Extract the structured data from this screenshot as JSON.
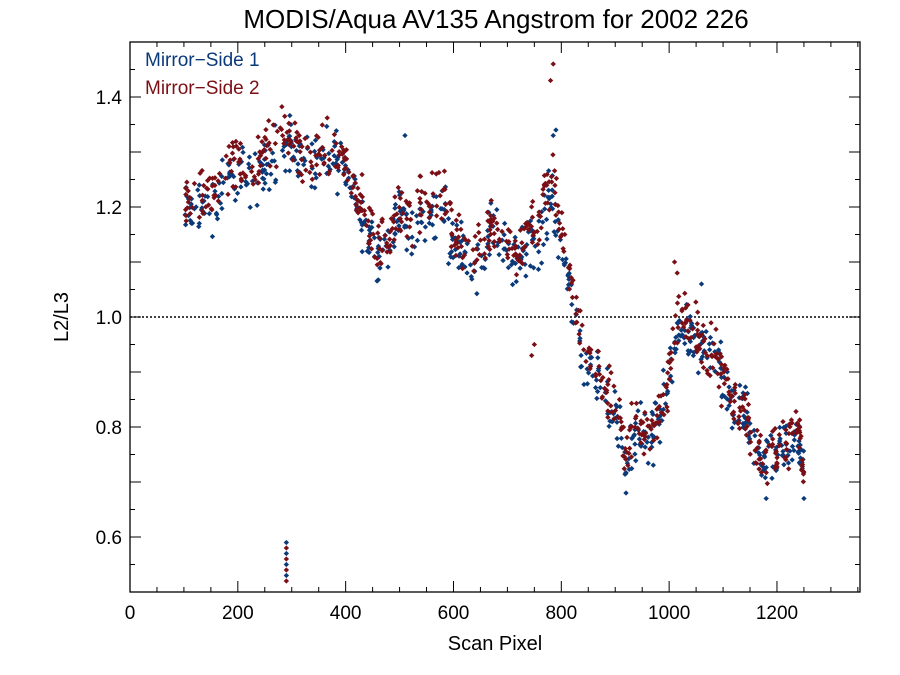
{
  "chart_data": {
    "type": "scatter",
    "title": "MODIS/Aqua AV135 Angstrom for 2002 226",
    "xlabel": "Scan Pixel",
    "ylabel": "L2/L3",
    "xlim": [
      0,
      1354
    ],
    "ylim": [
      0.5,
      1.5
    ],
    "x_ticks": [
      0,
      200,
      400,
      600,
      800,
      1000,
      1200
    ],
    "x_tick_labels": [
      "0",
      "200",
      "400",
      "600",
      "800",
      "1000",
      "1200"
    ],
    "y_ticks": [
      0.6,
      0.8,
      1.0,
      1.2,
      1.4
    ],
    "y_tick_labels": [
      "0.6",
      "0.8",
      "1.0",
      "1.2",
      "1.4"
    ],
    "reference_line": {
      "y": 1.0,
      "style": "dotted",
      "color": "#000000"
    },
    "legend_position": "top-left",
    "legend": [
      "Mirror−Side 1",
      "Mirror−Side 2"
    ],
    "series": [
      {
        "name": "Mirror−Side 1",
        "color": "#0b3a7a",
        "trend": [
          [
            100,
            1.18
          ],
          [
            120,
            1.2
          ],
          [
            150,
            1.2
          ],
          [
            180,
            1.24
          ],
          [
            200,
            1.26
          ],
          [
            230,
            1.25
          ],
          [
            250,
            1.27
          ],
          [
            280,
            1.31
          ],
          [
            300,
            1.32
          ],
          [
            320,
            1.28
          ],
          [
            350,
            1.28
          ],
          [
            380,
            1.29
          ],
          [
            400,
            1.27
          ],
          [
            420,
            1.21
          ],
          [
            440,
            1.16
          ],
          [
            460,
            1.12
          ],
          [
            480,
            1.13
          ],
          [
            500,
            1.18
          ],
          [
            520,
            1.16
          ],
          [
            550,
            1.18
          ],
          [
            580,
            1.19
          ],
          [
            600,
            1.14
          ],
          [
            620,
            1.12
          ],
          [
            650,
            1.1
          ],
          [
            670,
            1.16
          ],
          [
            700,
            1.12
          ],
          [
            720,
            1.09
          ],
          [
            740,
            1.15
          ],
          [
            760,
            1.14
          ],
          [
            780,
            1.22
          ],
          [
            800,
            1.14
          ],
          [
            820,
            1.02
          ],
          [
            850,
            0.9
          ],
          [
            880,
            0.86
          ],
          [
            900,
            0.82
          ],
          [
            920,
            0.74
          ],
          [
            940,
            0.8
          ],
          [
            960,
            0.77
          ],
          [
            980,
            0.8
          ],
          [
            1000,
            0.88
          ],
          [
            1020,
            1.0
          ],
          [
            1040,
            0.96
          ],
          [
            1060,
            0.94
          ],
          [
            1080,
            0.92
          ],
          [
            1100,
            0.89
          ],
          [
            1120,
            0.83
          ],
          [
            1140,
            0.82
          ],
          [
            1160,
            0.76
          ],
          [
            1180,
            0.73
          ],
          [
            1200,
            0.74
          ],
          [
            1220,
            0.77
          ],
          [
            1240,
            0.78
          ],
          [
            1250,
            0.7
          ]
        ],
        "points_per_segment": 14,
        "scatter_spread": 0.032,
        "outliers": [
          [
            790,
            1.34
          ],
          [
            785,
            1.33
          ],
          [
            510,
            1.33
          ],
          [
            1060,
            1.06
          ],
          [
            920,
            0.68
          ],
          [
            1180,
            0.67
          ],
          [
            1250,
            0.67
          ],
          [
            290,
            0.59
          ],
          [
            290,
            0.57
          ],
          [
            290,
            0.55
          ],
          [
            290,
            0.53
          ]
        ]
      },
      {
        "name": "Mirror−Side 2",
        "color": "#7a0f15",
        "trend": [
          [
            100,
            1.2
          ],
          [
            120,
            1.23
          ],
          [
            150,
            1.22
          ],
          [
            180,
            1.27
          ],
          [
            200,
            1.28
          ],
          [
            230,
            1.27
          ],
          [
            250,
            1.29
          ],
          [
            280,
            1.34
          ],
          [
            300,
            1.33
          ],
          [
            320,
            1.29
          ],
          [
            350,
            1.29
          ],
          [
            380,
            1.3
          ],
          [
            400,
            1.28
          ],
          [
            420,
            1.22
          ],
          [
            440,
            1.17
          ],
          [
            460,
            1.13
          ],
          [
            480,
            1.15
          ],
          [
            500,
            1.21
          ],
          [
            520,
            1.18
          ],
          [
            550,
            1.21
          ],
          [
            580,
            1.22
          ],
          [
            600,
            1.16
          ],
          [
            620,
            1.13
          ],
          [
            650,
            1.12
          ],
          [
            670,
            1.18
          ],
          [
            700,
            1.14
          ],
          [
            720,
            1.11
          ],
          [
            740,
            1.18
          ],
          [
            760,
            1.17
          ],
          [
            780,
            1.26
          ],
          [
            800,
            1.17
          ],
          [
            820,
            1.04
          ],
          [
            850,
            0.92
          ],
          [
            880,
            0.88
          ],
          [
            900,
            0.84
          ],
          [
            920,
            0.75
          ],
          [
            940,
            0.82
          ],
          [
            960,
            0.78
          ],
          [
            980,
            0.82
          ],
          [
            1000,
            0.9
          ],
          [
            1020,
            1.02
          ],
          [
            1040,
            0.98
          ],
          [
            1060,
            0.95
          ],
          [
            1080,
            0.93
          ],
          [
            1100,
            0.9
          ],
          [
            1120,
            0.84
          ],
          [
            1140,
            0.83
          ],
          [
            1160,
            0.77
          ],
          [
            1180,
            0.74
          ],
          [
            1200,
            0.76
          ],
          [
            1220,
            0.78
          ],
          [
            1240,
            0.79
          ],
          [
            1250,
            0.71
          ]
        ],
        "points_per_segment": 14,
        "scatter_spread": 0.032,
        "outliers": [
          [
            785,
            1.46
          ],
          [
            780,
            1.43
          ],
          [
            745,
            0.93
          ],
          [
            750,
            0.95
          ],
          [
            1010,
            1.1
          ],
          [
            1015,
            1.08
          ],
          [
            290,
            0.58
          ],
          [
            290,
            0.56
          ],
          [
            290,
            0.54
          ],
          [
            290,
            0.52
          ]
        ]
      }
    ]
  }
}
